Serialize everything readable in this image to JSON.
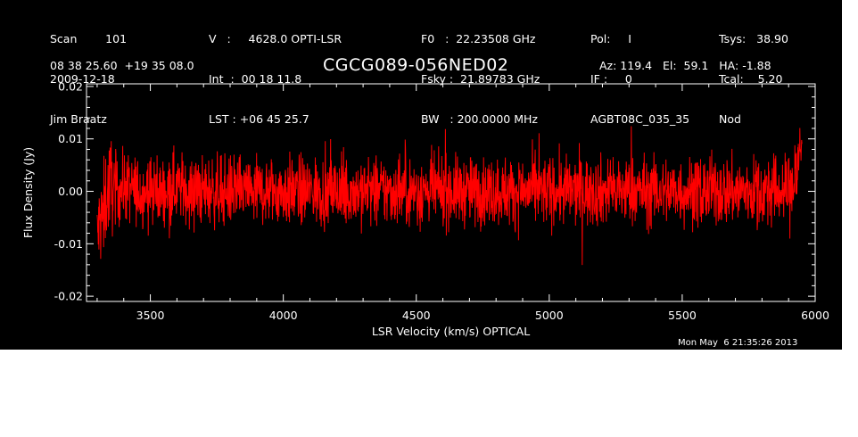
{
  "header": {
    "col1": [
      "Scan        101",
      "2009-12-18",
      "Jim Braatz"
    ],
    "col2": [
      "V   :     4628.0 OPTI-LSR",
      "Int  :  00 18 11.8",
      "LST : +06 45 25.7"
    ],
    "col3": [
      "F0   :  22.23508 GHz",
      "Fsky :  21.89783 GHz",
      "BW   : 200.0000 MHz"
    ],
    "col4": [
      "Pol:     I",
      "IF :     0",
      "AGBT08C_035_35"
    ],
    "col5": [
      "Tsys:   38.90",
      "Tcal:    5.20",
      "Nod"
    ],
    "coords": "08 38 25.60  +19 35 08.0",
    "source": "CGCG089-056NED02",
    "azelha": "Az: 119.4   El:  59.1   HA: -1.88"
  },
  "timestamp": "Mon May  6 21:35:26 2013",
  "colors": {
    "background": "#000000",
    "axes": "#ffffff",
    "trace": "#ff0000"
  },
  "chart_data": {
    "type": "line",
    "xlabel": "LSR Velocity (km/s) OPTICAL",
    "ylabel": "Flux Density (Jy)",
    "xlim": [
      3260,
      6000
    ],
    "ylim": [
      -0.021,
      0.0205
    ],
    "xticks": [
      3500,
      4000,
      4500,
      5000,
      5500,
      6000
    ],
    "xtick_labels": [
      "3500",
      "4000",
      "4500",
      "5000",
      "5500",
      "6000"
    ],
    "yticks": [
      -0.02,
      -0.01,
      0.0,
      0.01,
      0.02
    ],
    "ytick_labels": [
      "-0.02",
      "-0.01",
      "0.00",
      "0.01",
      "0.02"
    ],
    "grid": false,
    "series": [
      {
        "color": "#ff0000",
        "x": [
          3300,
          3310,
          3320,
          3330,
          3340,
          3350,
          3360,
          3380,
          3400,
          3450,
          3500,
          3550,
          3600,
          3650,
          3700,
          3750,
          3800,
          3850,
          3900,
          3950,
          4000,
          4050,
          4100,
          4150,
          4200,
          4220,
          4250,
          4300,
          4350,
          4400,
          4450,
          4500,
          4550,
          4600,
          4650,
          4700,
          4750,
          4800,
          4850,
          4900,
          4950,
          5000,
          5050,
          5100,
          5150,
          5200,
          5250,
          5300,
          5350,
          5400,
          5450,
          5500,
          5550,
          5600,
          5650,
          5700,
          5750,
          5800,
          5850,
          5900,
          5920,
          5940,
          5950
        ],
        "y": [
          -0.009,
          -0.006,
          -0.005,
          -0.002,
          0.0,
          0.002,
          0.001,
          0.0,
          0.001,
          0.0,
          0.0,
          0.0,
          0.001,
          0.0,
          0.0,
          0.0,
          0.0,
          0.0,
          0.0,
          0.0,
          0.0,
          0.0,
          0.0,
          0.0,
          0.0,
          -0.001,
          0.0,
          0.0,
          0.0,
          0.0,
          0.0,
          0.0,
          0.0,
          0.0,
          0.0,
          0.0,
          0.0,
          0.0,
          0.0,
          0.0,
          0.0,
          0.0,
          0.0,
          0.0,
          0.0,
          0.0,
          0.0,
          0.0,
          0.0,
          0.0,
          0.0,
          0.0,
          0.0,
          0.0,
          0.0,
          0.0,
          0.0,
          0.0,
          0.0,
          0.0,
          0.002,
          0.006,
          0.01
        ]
      }
    ]
  }
}
